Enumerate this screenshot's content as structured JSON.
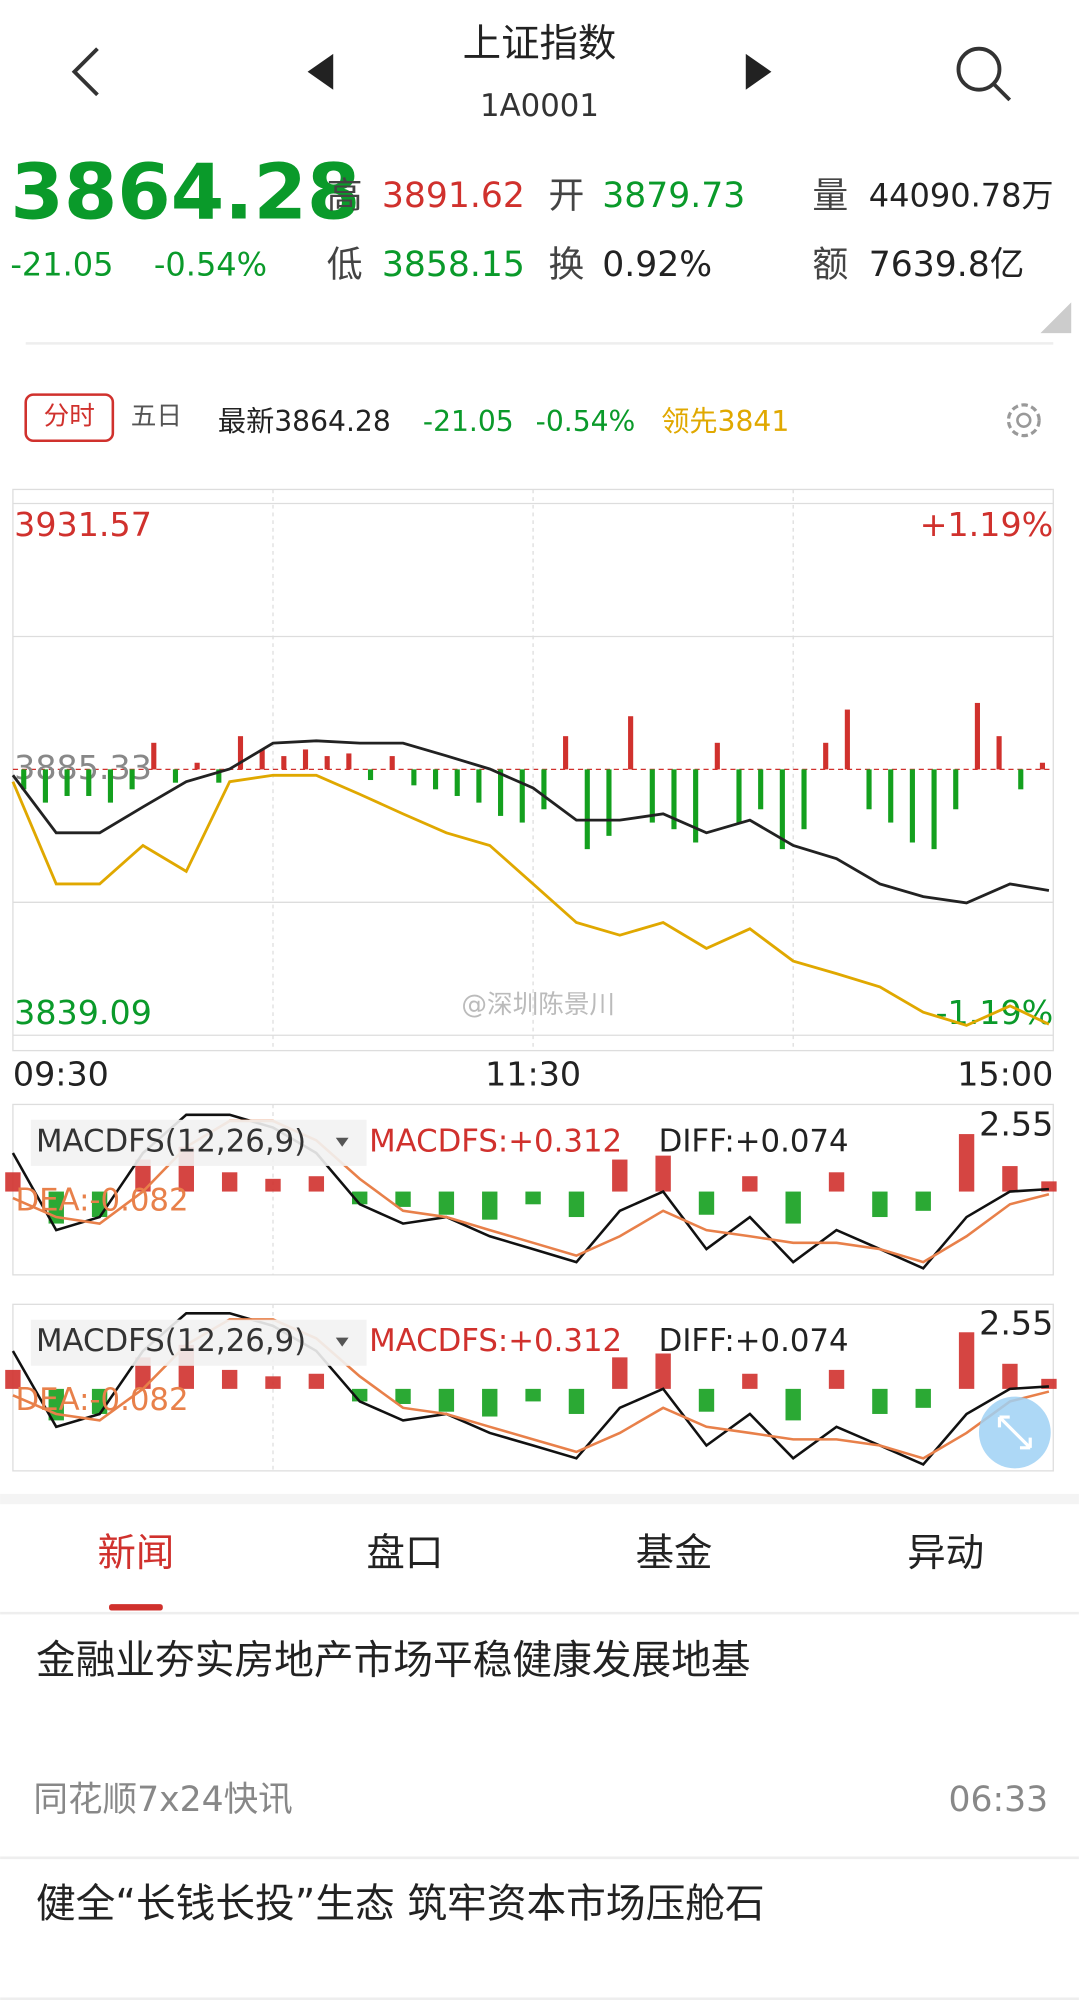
{
  "header": {
    "title": "上证指数",
    "code": "1A0001"
  },
  "quote": {
    "price": "3864.28",
    "change": "-21.05",
    "change_pct": "-0.54%",
    "high_label": "高",
    "high": "3891.62",
    "open_label": "开",
    "open": "3879.73",
    "low_label": "低",
    "low": "3858.15",
    "turnover_label": "换",
    "turnover": "0.92%",
    "volume_label": "量",
    "volume": "44090.78万",
    "amount_label": "额",
    "amount": "7639.8亿"
  },
  "tabs": {
    "intraday": "分时",
    "five_day": "五日",
    "latest": "最新3864.28",
    "change": "-21.05",
    "change_pct": "-0.54%",
    "leader": "领先3841"
  },
  "watermark": "@深圳陈景川",
  "chart_data": [
    {
      "type": "line",
      "ylim": [
        3839.09,
        3931.57
      ],
      "yticks": [
        3931.57,
        3885.33,
        3839.09
      ],
      "y2lim": [
        -1.19,
        1.19
      ],
      "y2ticks": [
        {
          "value": 1.19,
          "label": "+1.19%"
        },
        {
          "value": -1.19,
          "label": "-1.19%"
        }
      ],
      "xlim": [
        0,
        240
      ],
      "xticks": [
        {
          "value": 0,
          "label": "09:30"
        },
        {
          "value": 120,
          "label": "11:30"
        },
        {
          "value": 240,
          "label": "15:00"
        }
      ],
      "grid": true,
      "x": [
        0,
        10,
        20,
        30,
        40,
        50,
        60,
        70,
        80,
        90,
        100,
        110,
        120,
        130,
        140,
        150,
        160,
        170,
        180,
        190,
        200,
        210,
        220,
        230,
        239
      ],
      "series": [
        {
          "color": "#222222",
          "values": [
            3884.3,
            3874.3,
            3874.3,
            3878.8,
            3883.2,
            3885.4,
            3889.9,
            3890.3,
            3889.9,
            3889.9,
            3887.7,
            3885.4,
            3882.1,
            3876.5,
            3876.5,
            3877.6,
            3874.3,
            3876.5,
            3872.1,
            3869.8,
            3865.4,
            3863.2,
            3862.1,
            3865.4,
            3864.28
          ]
        },
        {
          "color": "#e0a800",
          "values": [
            3883.2,
            3865.4,
            3865.4,
            3872.1,
            3867.6,
            3883.2,
            3884.3,
            3884.3,
            3881.0,
            3877.6,
            3874.3,
            3872.1,
            3865.4,
            3858.7,
            3856.5,
            3858.7,
            3854.2,
            3857.6,
            3852.0,
            3849.8,
            3847.5,
            3843.1,
            3840.8,
            3844.2,
            3841
          ]
        }
      ],
      "bars": {
        "ylim": [
          -200,
          200
        ],
        "up_color": "#d0312d",
        "down_color": "#14a01e",
        "x": [
          2.5,
          7.5,
          12.5,
          17.5,
          22.5,
          27.5,
          32.5,
          37.5,
          42.5,
          47.5,
          52.5,
          57.5,
          62.5,
          67.5,
          72.5,
          77.5,
          82.5,
          87.5,
          92.5,
          97.5,
          102.5,
          107.5,
          112.5,
          117.5,
          122.5,
          127.5,
          132.5,
          137.5,
          142.5,
          147.5,
          152.5,
          157.5,
          162.5,
          167.5,
          172.5,
          177.5,
          182.5,
          187.5,
          192.5,
          197.5,
          202.5,
          207.5,
          212.5,
          217.5,
          222.5,
          227.5,
          232.5,
          237.5
        ],
        "values": [
          -15,
          -25,
          -20,
          -20,
          -25,
          -15,
          20,
          -10,
          5,
          -10,
          25,
          15,
          10,
          15,
          10,
          12,
          -8,
          10,
          -12,
          -15,
          -20,
          -25,
          -35,
          -40,
          -30,
          25,
          -60,
          -50,
          40,
          -40,
          -45,
          -55,
          20,
          -40,
          -30,
          -60,
          -45,
          20,
          45,
          -30,
          -40,
          -55,
          -60,
          -30,
          50,
          25,
          -15,
          5
        ]
      }
    },
    {
      "type": "macd",
      "ylim": [
        -2.55,
        2.55
      ],
      "yticks": [
        2.55
      ],
      "xlim": [
        0,
        240
      ],
      "labels": [
        "MACDFS(12,26,9)",
        "MACDFS:+0.312",
        "DIFF:+0.074",
        "DEA:-0.082"
      ],
      "x": [
        0,
        10,
        20,
        30,
        40,
        50,
        60,
        70,
        80,
        90,
        100,
        110,
        120,
        130,
        140,
        150,
        160,
        170,
        180,
        190,
        200,
        210,
        220,
        230,
        239
      ],
      "histogram": {
        "up_color": "#d0312d",
        "down_color": "#14a01e",
        "values": [
          0.59,
          -0.98,
          -0.78,
          0.98,
          1.37,
          0.59,
          0.39,
          0.47,
          -0.39,
          -0.47,
          -0.71,
          -0.86,
          -0.39,
          -0.78,
          0.98,
          1.1,
          -0.71,
          0.47,
          -0.98,
          0.59,
          -0.78,
          -0.59,
          1.76,
          0.78,
          0.312
        ]
      },
      "series": [
        {
          "color": "#111111",
          "values": [
            1.18,
            -1.18,
            -0.78,
            1.18,
            2.35,
            2.35,
            1.96,
            1.18,
            -0.39,
            -0.98,
            -0.78,
            -1.37,
            -1.76,
            -2.16,
            -0.59,
            0,
            -1.76,
            -0.78,
            -2.16,
            -1.18,
            -1.76,
            -2.35,
            -0.78,
            0,
            0.074
          ]
        },
        {
          "color": "#e8804a",
          "values": [
            -0.2,
            -0.78,
            -0.98,
            0,
            1.37,
            2.16,
            2.16,
            1.57,
            0.39,
            -0.59,
            -0.78,
            -1.18,
            -1.57,
            -1.96,
            -1.37,
            -0.59,
            -1.18,
            -1.37,
            -1.57,
            -1.57,
            -1.76,
            -2.16,
            -1.37,
            -0.39,
            -0.082
          ]
        }
      ]
    },
    {
      "type": "macd",
      "ylim": [
        -2.55,
        2.55
      ],
      "yticks": [
        2.55
      ],
      "xlim": [
        0,
        240
      ],
      "labels": [
        "MACDFS(12,26,9)",
        "MACDFS:+0.312",
        "DIFF:+0.074",
        "DEA:-0.082"
      ],
      "x": [
        0,
        10,
        20,
        30,
        40,
        50,
        60,
        70,
        80,
        90,
        100,
        110,
        120,
        130,
        140,
        150,
        160,
        170,
        180,
        190,
        200,
        210,
        220,
        230,
        239
      ],
      "histogram": {
        "up_color": "#d0312d",
        "down_color": "#14a01e",
        "values": [
          0.59,
          -0.98,
          -0.78,
          0.98,
          1.37,
          0.59,
          0.39,
          0.47,
          -0.39,
          -0.47,
          -0.71,
          -0.86,
          -0.39,
          -0.78,
          0.98,
          1.1,
          -0.71,
          0.47,
          -0.98,
          0.59,
          -0.78,
          -0.59,
          1.76,
          0.78,
          0.312
        ]
      },
      "series": [
        {
          "color": "#111111",
          "values": [
            1.18,
            -1.18,
            -0.78,
            1.18,
            2.35,
            2.35,
            1.96,
            1.18,
            -0.39,
            -0.98,
            -0.78,
            -1.37,
            -1.76,
            -2.16,
            -0.59,
            0,
            -1.76,
            -0.78,
            -2.16,
            -1.18,
            -1.76,
            -2.35,
            -0.78,
            0,
            0.074
          ]
        },
        {
          "color": "#e8804a",
          "values": [
            -0.2,
            -0.78,
            -0.98,
            0,
            1.37,
            2.16,
            2.16,
            1.57,
            0.39,
            -0.59,
            -0.78,
            -1.18,
            -1.57,
            -1.96,
            -1.37,
            -0.59,
            -1.18,
            -1.37,
            -1.57,
            -1.57,
            -1.76,
            -2.16,
            -1.37,
            -0.39,
            -0.082
          ]
        }
      ]
    }
  ],
  "bottom_tabs": [
    "新闻",
    "盘口",
    "基金",
    "异动"
  ],
  "news": [
    {
      "title": "金融业夯实房地产市场平稳健康发展地基",
      "source": "同花顺7x24快讯",
      "time": "06:33"
    },
    {
      "title": "健全“长钱长投”生态 筑牢资本市场压舱石"
    }
  ]
}
